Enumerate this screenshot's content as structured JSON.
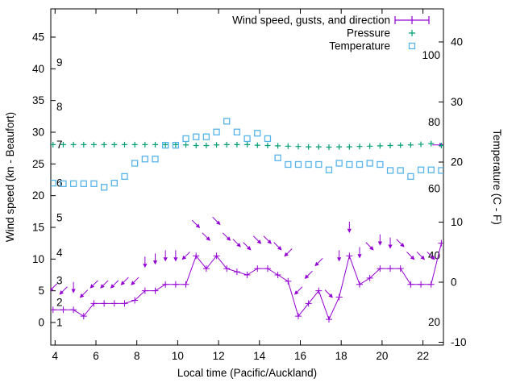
{
  "chart_data": {
    "type": "line",
    "title": "",
    "xlabel": "Local time (Pacific/Auckland)",
    "ylabel_left": "Wind speed (kn - Beaufort)",
    "ylabel_right": "Temperature (C - F)",
    "x_range": [
      3.79,
      23.0
    ],
    "y_left_range": [
      -3.56,
      49.45
    ],
    "y_right_range": [
      -10.47,
      45.5
    ],
    "x_ticks": [
      4,
      6,
      8,
      10,
      12,
      14,
      16,
      18,
      20,
      22
    ],
    "y_left_ticks": [
      0,
      5,
      10,
      15,
      20,
      25,
      30,
      35,
      40,
      45
    ],
    "y_right_ticks": [
      -10,
      0,
      10,
      20,
      30,
      40
    ],
    "beaufort_labels": [
      {
        "label": "1",
        "kn": 0.0
      },
      {
        "label": "2",
        "kn": 3.2
      },
      {
        "label": "3",
        "kn": 6.6
      },
      {
        "label": "4",
        "kn": 11.0
      },
      {
        "label": "5",
        "kn": 16.5
      },
      {
        "label": "6",
        "kn": 22.0
      },
      {
        "label": "7",
        "kn": 28.0
      },
      {
        "label": "8",
        "kn": 34.0
      },
      {
        "label": "9",
        "kn": 41.0
      }
    ],
    "fahrenheit_labels": [
      {
        "label": "20",
        "f": 20
      },
      {
        "label": "40",
        "f": 40
      },
      {
        "label": "60",
        "f": 60
      },
      {
        "label": "80",
        "f": 80
      },
      {
        "label": "100",
        "f": 100
      }
    ],
    "legend": [
      {
        "label": "Wind speed, gusts, and direction",
        "marker": "errorbar-line",
        "color": "#9400d3"
      },
      {
        "label": "Pressure",
        "marker": "plus",
        "color": "#009e73"
      },
      {
        "label": "Temperature",
        "marker": "open-square",
        "color": "#56b4e9"
      }
    ],
    "colors": {
      "wind": "#9400d3",
      "pressure": "#009e73",
      "temperature": "#56b4e9",
      "axis": "#000000",
      "background": "#ffffff"
    },
    "x": [
      3.9,
      4.4,
      4.9,
      5.4,
      5.9,
      6.4,
      6.9,
      7.4,
      7.9,
      8.4,
      8.9,
      9.4,
      9.9,
      10.4,
      10.9,
      11.4,
      11.9,
      12.4,
      12.9,
      13.4,
      13.9,
      14.4,
      14.9,
      15.4,
      15.9,
      16.4,
      16.9,
      17.4,
      17.9,
      18.4,
      18.9,
      19.4,
      19.9,
      20.4,
      20.9,
      21.4,
      21.9,
      22.4,
      22.9
    ],
    "series": [
      {
        "name": "Wind speed (kn)",
        "axis": "left",
        "values": [
          2,
          2,
          2,
          1,
          3,
          3,
          3,
          3,
          3.5,
          5,
          5,
          6,
          6,
          6,
          10.5,
          8.5,
          10.5,
          8.5,
          8,
          7.5,
          8.5,
          8.5,
          7.5,
          6.5,
          1,
          3,
          5,
          0.5,
          4,
          10.5,
          6,
          7,
          8.5,
          8.5,
          8.5,
          6,
          6,
          6,
          12.5
        ]
      },
      {
        "name": "Wind gusts (arrow height, kn)",
        "axis": "left",
        "values": [
          5.5,
          5,
          5.5,
          4.5,
          6,
          6,
          6,
          6.5,
          6.5,
          9.5,
          10,
          10.5,
          10.5,
          10.5,
          15.5,
          13.5,
          16,
          13.5,
          12.5,
          12,
          13,
          13,
          12,
          11,
          5,
          7.5,
          9.5,
          4.5,
          10.5,
          15,
          11,
          12,
          13,
          12.5,
          12.5,
          10.5,
          10.5,
          10.5,
          28
        ],
        "directions": [
          "SW",
          "SW",
          "S",
          "SW",
          "SW",
          "SW",
          "SW",
          "SW",
          "SW",
          "S",
          "S",
          "S",
          "S",
          "SW",
          "SE",
          "SE",
          "SE",
          "SE",
          "SE",
          "SE",
          "SE",
          "SE",
          "SE",
          "SW",
          "SW",
          "SW",
          "SW",
          "SE",
          "S",
          "S",
          "S",
          "SE",
          "S",
          "S",
          "SE",
          "SE",
          "SE",
          "SE",
          "E"
        ]
      },
      {
        "name": "Pressure (plotted level, left-axis units)",
        "axis": "left",
        "values": [
          28.05,
          28.05,
          28.05,
          28.05,
          28.05,
          28.05,
          28.05,
          28.05,
          28.05,
          28.05,
          28.05,
          28.05,
          28.05,
          28,
          27.9,
          27.9,
          28,
          28.05,
          28.05,
          28.05,
          27.95,
          27.9,
          27.85,
          27.8,
          27.75,
          27.7,
          27.7,
          27.65,
          27.7,
          27.7,
          27.75,
          27.8,
          27.85,
          27.9,
          27.95,
          28,
          28.1,
          28.2,
          27.9
        ]
      },
      {
        "name": "Temperature (C)",
        "axis": "right",
        "values": [
          16.5,
          16.4,
          16.4,
          16.4,
          16.4,
          15.8,
          16.5,
          17.6,
          19.8,
          20.5,
          20.5,
          22.8,
          22.8,
          23.9,
          24.2,
          24.2,
          25,
          26.8,
          25,
          23.9,
          24.8,
          23.9,
          20.7,
          19.6,
          19.6,
          19.6,
          19.6,
          18.7,
          19.8,
          19.6,
          19.6,
          19.8,
          19.6,
          18.6,
          18.6,
          17.6,
          18.7,
          18.7,
          18.6
        ]
      }
    ]
  }
}
